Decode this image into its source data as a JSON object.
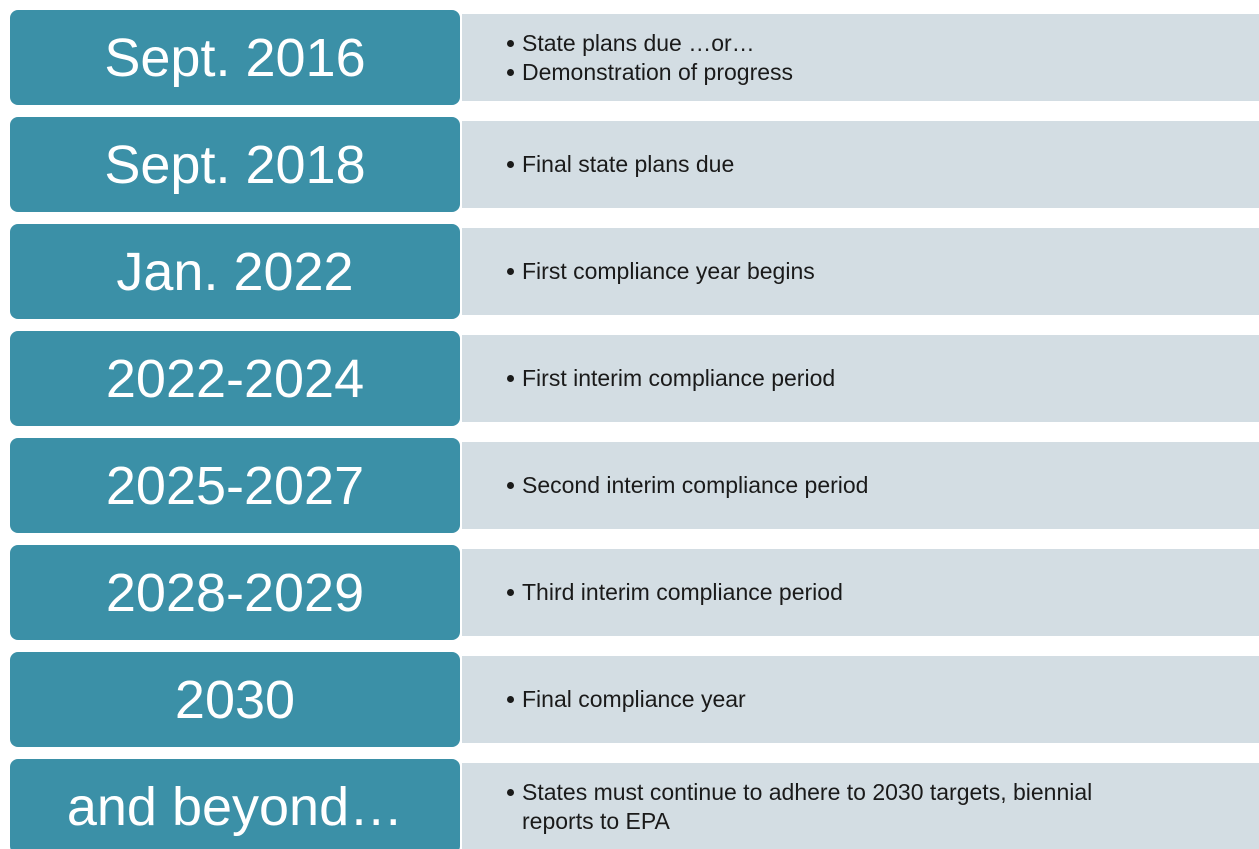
{
  "timeline": {
    "rows": [
      {
        "label": "Sept. 2016",
        "bullets": [
          "State plans due …or…",
          "Demonstration of progress"
        ]
      },
      {
        "label": "Sept. 2018",
        "bullets": [
          "Final state plans due"
        ]
      },
      {
        "label": "Jan. 2022",
        "bullets": [
          "First compliance year begins"
        ]
      },
      {
        "label": "2022-2024",
        "bullets": [
          "First interim compliance period"
        ]
      },
      {
        "label": "2025-2027",
        "bullets": [
          "Second interim compliance period"
        ]
      },
      {
        "label": "2028-2029",
        "bullets": [
          "Third interim compliance period"
        ]
      },
      {
        "label": "2030",
        "bullets": [
          "Final compliance year"
        ]
      },
      {
        "label": "and beyond…",
        "bullets": [
          "States must continue to adhere to 2030 targets, biennial reports to EPA"
        ]
      }
    ]
  }
}
